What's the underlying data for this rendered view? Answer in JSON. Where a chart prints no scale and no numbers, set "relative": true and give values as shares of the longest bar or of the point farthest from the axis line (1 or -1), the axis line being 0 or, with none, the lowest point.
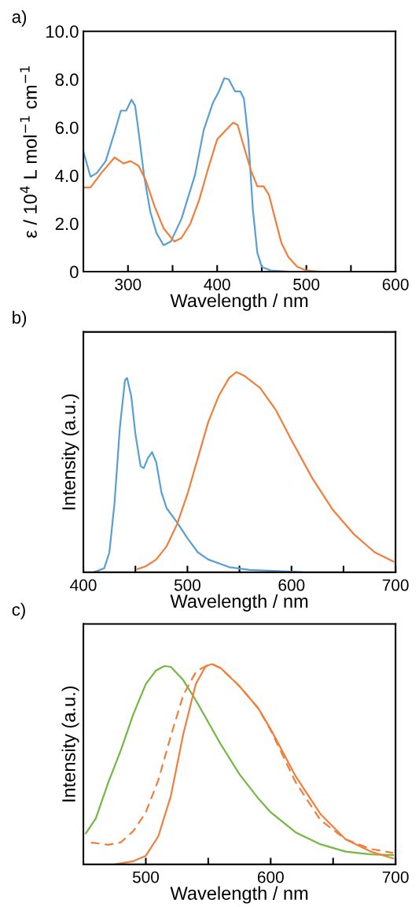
{
  "chart_data": [
    {
      "type": "line",
      "title": "a)",
      "xlabel": "Wavelength / nm",
      "ylabel": "ε / 10$^{4}$ L mol$^{−1}$ cm$^{−1}$",
      "xlim": [
        250,
        600
      ],
      "xticks": [
        300,
        {
          "value": 350,
          "label": null
        },
        400,
        {
          "value": 450,
          "label": null
        },
        500,
        {
          "value": 550,
          "label": null
        },
        600
      ],
      "ylim": [
        0,
        10
      ],
      "yticks": [
        0,
        {
          "value": 2,
          "label": "2.0"
        },
        {
          "value": 4,
          "label": "4.0"
        },
        {
          "value": 6,
          "label": "6.0"
        },
        {
          "value": 8,
          "label": "8.0"
        },
        {
          "value": 10,
          "label": "10.0"
        }
      ],
      "grid": false,
      "legend": false,
      "series": [
        {
          "color": "#5a9fd4",
          "line_style": "solid",
          "x": [
            250,
            258,
            265,
            275,
            285,
            292,
            298,
            304,
            308,
            312,
            318,
            325,
            332,
            340,
            348,
            360,
            375,
            385,
            395,
            402,
            408,
            413,
            420,
            426,
            430,
            435,
            440,
            445,
            450,
            460,
            480
          ],
          "values": [
            5.0,
            3.95,
            4.1,
            4.6,
            5.8,
            6.7,
            6.7,
            7.15,
            6.9,
            5.8,
            4.0,
            2.5,
            1.6,
            1.1,
            1.25,
            2.2,
            4.0,
            5.9,
            7.0,
            7.5,
            8.05,
            8.0,
            7.5,
            7.5,
            7.2,
            5.5,
            2.6,
            0.8,
            0.2,
            0.05,
            0
          ]
        },
        {
          "color": "#f07f3c",
          "line_style": "solid",
          "x": [
            250,
            258,
            270,
            285,
            295,
            303,
            312,
            320,
            330,
            340,
            352,
            360,
            370,
            380,
            390,
            400,
            410,
            418,
            423,
            430,
            438,
            445,
            452,
            458,
            465,
            472,
            480,
            490,
            500,
            515
          ],
          "values": [
            3.5,
            3.5,
            4.1,
            4.75,
            4.5,
            4.6,
            4.4,
            3.8,
            2.7,
            1.8,
            1.25,
            1.4,
            2.0,
            3.0,
            4.3,
            5.5,
            5.9,
            6.2,
            6.1,
            5.2,
            4.2,
            3.55,
            3.55,
            3.2,
            2.2,
            1.2,
            0.6,
            0.2,
            0.05,
            0
          ]
        }
      ]
    },
    {
      "type": "line",
      "title": "b)",
      "xlabel": "Wavelength / nm",
      "ylabel": "Intensity (a.u.)",
      "relative": true,
      "tick_labels": "x",
      "xlim": [
        400,
        700
      ],
      "xticks": [
        400,
        {
          "value": 450,
          "label": null
        },
        500,
        {
          "value": 550,
          "label": null
        },
        600,
        {
          "value": 650,
          "label": null
        },
        700
      ],
      "grid": false,
      "legend": false,
      "series": [
        {
          "color": "#5a9fd4",
          "line_style": "solid",
          "x": [
            410,
            420,
            425,
            430,
            435,
            440,
            442,
            446,
            450,
            455,
            458,
            462,
            466,
            470,
            475,
            480,
            490,
            500,
            510,
            520,
            540,
            560,
            600,
            610
          ],
          "values": [
            0,
            0.02,
            0.1,
            0.35,
            0.72,
            0.96,
            0.97,
            0.88,
            0.69,
            0.53,
            0.52,
            0.57,
            0.6,
            0.55,
            0.4,
            0.32,
            0.25,
            0.17,
            0.1,
            0.064,
            0.026,
            0.012,
            0.003,
            0
          ]
        },
        {
          "color": "#f07f3c",
          "line_style": "solid",
          "x": [
            452,
            460,
            470,
            480,
            490,
            500,
            510,
            520,
            530,
            540,
            547,
            555,
            570,
            585,
            600,
            620,
            640,
            660,
            680,
            698
          ],
          "values": [
            0.016,
            0.03,
            0.064,
            0.13,
            0.24,
            0.39,
            0.57,
            0.75,
            0.88,
            0.97,
            1.0,
            0.98,
            0.92,
            0.81,
            0.66,
            0.47,
            0.31,
            0.19,
            0.1,
            0.054
          ]
        }
      ]
    },
    {
      "type": "line",
      "title": "c)",
      "xlabel": "Wavelength / nm",
      "ylabel": "Intensity (a.u.)",
      "relative": true,
      "tick_labels": "x",
      "xlim": [
        450,
        700
      ],
      "xticks": [
        500,
        {
          "value": 550,
          "label": null
        },
        600,
        {
          "value": 650,
          "label": null
        },
        700
      ],
      "grid": false,
      "legend": false,
      "series": [
        {
          "color": "#72b843",
          "line_style": "solid",
          "x": [
            452,
            460,
            470,
            480,
            490,
            500,
            508,
            515,
            520,
            530,
            540,
            550,
            560,
            575,
            590,
            600,
            620,
            640,
            660,
            680,
            698
          ],
          "values": [
            0.155,
            0.23,
            0.41,
            0.57,
            0.75,
            0.9,
            0.967,
            0.99,
            0.986,
            0.92,
            0.82,
            0.71,
            0.6,
            0.45,
            0.33,
            0.26,
            0.16,
            0.1,
            0.064,
            0.05,
            0.046
          ]
        },
        {
          "color": "#f07f3c",
          "line_style": "dashed",
          "x": [
            456,
            470,
            480,
            490,
            500,
            510,
            520,
            530,
            540,
            545,
            553,
            560,
            575,
            590,
            600,
            620,
            640,
            660,
            680,
            698
          ],
          "values": [
            0.109,
            0.098,
            0.11,
            0.166,
            0.26,
            0.42,
            0.64,
            0.845,
            0.96,
            0.98,
            1.0,
            0.98,
            0.89,
            0.78,
            0.67,
            0.41,
            0.22,
            0.125,
            0.077,
            0.057
          ]
        },
        {
          "color": "#f07f3c",
          "line_style": "solid",
          "x": [
            475,
            490,
            500,
            510,
            520,
            530,
            540,
            548,
            553,
            560,
            575,
            590,
            600,
            620,
            640,
            660,
            680,
            698
          ],
          "values": [
            0,
            0.016,
            0.043,
            0.14,
            0.34,
            0.65,
            0.9,
            0.99,
            1.0,
            0.98,
            0.89,
            0.78,
            0.675,
            0.44,
            0.25,
            0.125,
            0.064,
            0.03
          ]
        }
      ]
    }
  ]
}
